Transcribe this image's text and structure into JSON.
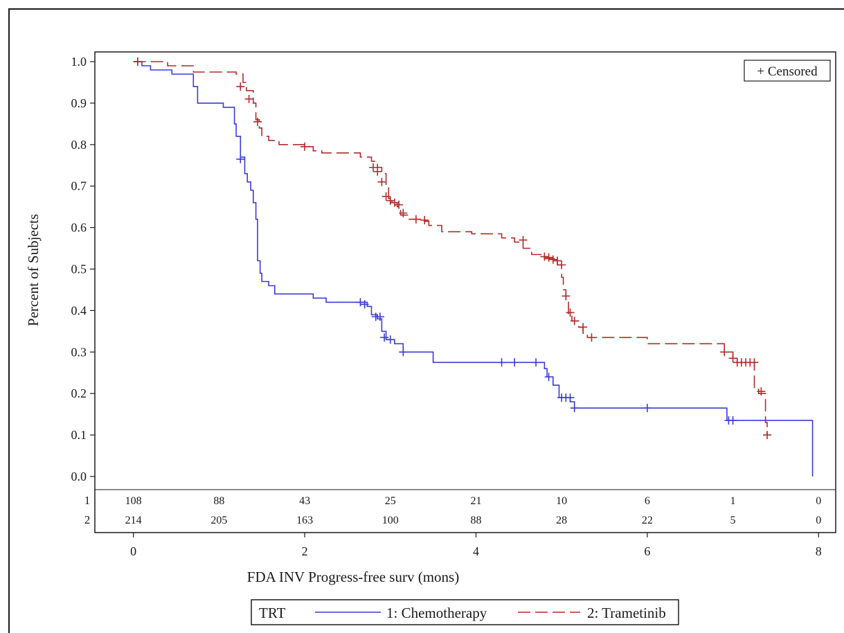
{
  "chart_data": {
    "type": "line",
    "subtype": "kaplan-meier",
    "title": "",
    "xlabel": "FDA INV Progress-free surv (mons)",
    "ylabel": "Percent of Subjects",
    "xlim": [
      -0.45,
      8.2
    ],
    "ylim": [
      0,
      1.0
    ],
    "xticks": [
      0,
      2,
      4,
      6,
      8
    ],
    "yticks": [
      0.0,
      0.1,
      0.2,
      0.3,
      0.4,
      0.5,
      0.6,
      0.7,
      0.8,
      0.9,
      1.0
    ],
    "grid": false,
    "censor_legend": "+ Censored",
    "legend": {
      "title": "TRT",
      "position": "bottom"
    },
    "series": [
      {
        "name": "1: Chemotherapy",
        "color": "#3a3ad9",
        "style": "solid",
        "steps": [
          [
            0,
            1.0
          ],
          [
            0.1,
            0.99
          ],
          [
            0.2,
            0.98
          ],
          [
            0.45,
            0.97
          ],
          [
            0.7,
            0.94
          ],
          [
            0.75,
            0.9
          ],
          [
            1.05,
            0.89
          ],
          [
            1.18,
            0.85
          ],
          [
            1.2,
            0.82
          ],
          [
            1.25,
            0.77
          ],
          [
            1.3,
            0.73
          ],
          [
            1.33,
            0.71
          ],
          [
            1.37,
            0.69
          ],
          [
            1.4,
            0.66
          ],
          [
            1.43,
            0.62
          ],
          [
            1.45,
            0.52
          ],
          [
            1.48,
            0.49
          ],
          [
            1.5,
            0.47
          ],
          [
            1.58,
            0.46
          ],
          [
            1.65,
            0.44
          ],
          [
            2.05,
            0.44
          ],
          [
            2.1,
            0.43
          ],
          [
            2.25,
            0.42
          ],
          [
            2.7,
            0.42
          ],
          [
            2.73,
            0.41
          ],
          [
            2.78,
            0.39
          ],
          [
            2.85,
            0.38
          ],
          [
            2.9,
            0.35
          ],
          [
            2.95,
            0.33
          ],
          [
            3.05,
            0.32
          ],
          [
            3.15,
            0.3
          ],
          [
            3.45,
            0.3
          ],
          [
            3.5,
            0.275
          ],
          [
            4.75,
            0.275
          ],
          [
            4.8,
            0.26
          ],
          [
            4.83,
            0.24
          ],
          [
            4.9,
            0.22
          ],
          [
            4.97,
            0.19
          ],
          [
            5.1,
            0.18
          ],
          [
            5.15,
            0.165
          ],
          [
            6.9,
            0.165
          ],
          [
            6.93,
            0.135
          ],
          [
            7.9,
            0.135
          ],
          [
            7.93,
            0.0
          ]
        ],
        "censored": [
          [
            0.05,
            1.0
          ],
          [
            1.25,
            0.765
          ],
          [
            2.65,
            0.42
          ],
          [
            2.7,
            0.415
          ],
          [
            2.83,
            0.385
          ],
          [
            2.88,
            0.385
          ],
          [
            2.93,
            0.335
          ],
          [
            3.0,
            0.33
          ],
          [
            3.15,
            0.3
          ],
          [
            4.3,
            0.275
          ],
          [
            4.45,
            0.275
          ],
          [
            4.7,
            0.275
          ],
          [
            4.85,
            0.24
          ],
          [
            5.0,
            0.19
          ],
          [
            5.05,
            0.19
          ],
          [
            5.1,
            0.19
          ],
          [
            5.15,
            0.165
          ],
          [
            6.0,
            0.165
          ],
          [
            6.95,
            0.135
          ],
          [
            7.0,
            0.135
          ]
        ]
      },
      {
        "name": "2: Trametinib",
        "color": "#b22a2a",
        "style": "dashed",
        "steps": [
          [
            0,
            1.0
          ],
          [
            0.4,
            0.99
          ],
          [
            0.7,
            0.975
          ],
          [
            1.2,
            0.97
          ],
          [
            1.28,
            0.95
          ],
          [
            1.32,
            0.93
          ],
          [
            1.4,
            0.9
          ],
          [
            1.43,
            0.86
          ],
          [
            1.47,
            0.84
          ],
          [
            1.5,
            0.82
          ],
          [
            1.58,
            0.81
          ],
          [
            1.7,
            0.8
          ],
          [
            2.05,
            0.795
          ],
          [
            2.1,
            0.785
          ],
          [
            2.2,
            0.78
          ],
          [
            2.5,
            0.78
          ],
          [
            2.65,
            0.77
          ],
          [
            2.78,
            0.76
          ],
          [
            2.85,
            0.745
          ],
          [
            2.9,
            0.73
          ],
          [
            2.95,
            0.7
          ],
          [
            2.98,
            0.67
          ],
          [
            3.02,
            0.66
          ],
          [
            3.08,
            0.65
          ],
          [
            3.12,
            0.63
          ],
          [
            3.2,
            0.62
          ],
          [
            3.35,
            0.615
          ],
          [
            3.45,
            0.605
          ],
          [
            3.6,
            0.59
          ],
          [
            3.9,
            0.59
          ],
          [
            3.95,
            0.585
          ],
          [
            4.2,
            0.585
          ],
          [
            4.3,
            0.575
          ],
          [
            4.45,
            0.565
          ],
          [
            4.55,
            0.55
          ],
          [
            4.65,
            0.535
          ],
          [
            4.8,
            0.525
          ],
          [
            4.95,
            0.51
          ],
          [
            5.0,
            0.48
          ],
          [
            5.02,
            0.45
          ],
          [
            5.05,
            0.42
          ],
          [
            5.08,
            0.39
          ],
          [
            5.12,
            0.375
          ],
          [
            5.2,
            0.36
          ],
          [
            5.25,
            0.345
          ],
          [
            5.3,
            0.335
          ],
          [
            6.0,
            0.32
          ],
          [
            6.9,
            0.3
          ],
          [
            7.0,
            0.285
          ],
          [
            7.05,
            0.275
          ],
          [
            7.25,
            0.21
          ],
          [
            7.3,
            0.2
          ],
          [
            7.38,
            0.13
          ],
          [
            7.4,
            0.1
          ]
        ],
        "censored": [
          [
            0.05,
            1.0
          ],
          [
            1.25,
            0.94
          ],
          [
            1.35,
            0.91
          ],
          [
            1.45,
            0.855
          ],
          [
            2.0,
            0.795
          ],
          [
            2.8,
            0.745
          ],
          [
            2.85,
            0.735
          ],
          [
            2.9,
            0.71
          ],
          [
            2.95,
            0.675
          ],
          [
            3.0,
            0.665
          ],
          [
            3.05,
            0.66
          ],
          [
            3.1,
            0.655
          ],
          [
            3.15,
            0.635
          ],
          [
            3.3,
            0.62
          ],
          [
            3.4,
            0.618
          ],
          [
            4.55,
            0.57
          ],
          [
            4.8,
            0.53
          ],
          [
            4.85,
            0.528
          ],
          [
            4.9,
            0.523
          ],
          [
            4.95,
            0.52
          ],
          [
            5.0,
            0.51
          ],
          [
            5.05,
            0.435
          ],
          [
            5.1,
            0.395
          ],
          [
            5.15,
            0.375
          ],
          [
            5.25,
            0.36
          ],
          [
            5.35,
            0.335
          ],
          [
            6.9,
            0.3
          ],
          [
            7.0,
            0.285
          ],
          [
            7.05,
            0.275
          ],
          [
            7.1,
            0.275
          ],
          [
            7.15,
            0.275
          ],
          [
            7.2,
            0.275
          ],
          [
            7.25,
            0.275
          ],
          [
            7.33,
            0.205
          ],
          [
            7.4,
            0.1
          ]
        ]
      }
    ],
    "at_risk": {
      "times": [
        0,
        1,
        2,
        3,
        4,
        5,
        6,
        7,
        8
      ],
      "rows": [
        {
          "label": "1",
          "values": [
            "108",
            "88",
            "43",
            "25",
            "21",
            "10",
            "6",
            "1",
            "0"
          ]
        },
        {
          "label": "2",
          "values": [
            "214",
            "205",
            "163",
            "100",
            "88",
            "28",
            "22",
            "5",
            "0"
          ]
        }
      ]
    }
  }
}
